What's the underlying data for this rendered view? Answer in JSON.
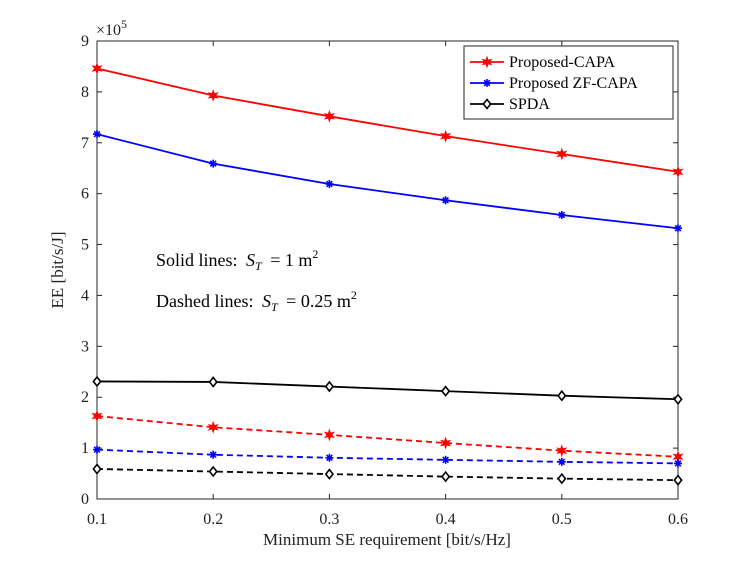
{
  "chart_data": {
    "type": "line",
    "title": "",
    "xlabel": "Minimum SE requirement [bit/s/Hz]",
    "ylabel": "EE [bit/s/J]",
    "x": [
      0.1,
      0.2,
      0.3,
      0.4,
      0.5,
      0.6
    ],
    "xlim": [
      0.1,
      0.6
    ],
    "ylim": [
      0,
      9
    ],
    "y_scale_exponent": "×10",
    "y_scale_power": "5",
    "x_ticks": [
      "0.1",
      "0.2",
      "0.3",
      "0.4",
      "0.5",
      "0.6"
    ],
    "y_ticks": [
      "0",
      "1",
      "2",
      "3",
      "4",
      "5",
      "6",
      "7",
      "8",
      "9"
    ],
    "grid": false,
    "legend_position": "top-right",
    "series": [
      {
        "name": "Proposed-CAPA",
        "color": "#ff0000",
        "style": "solid",
        "marker": "star",
        "show_in_legend": true,
        "values": [
          8.46,
          7.93,
          7.52,
          7.13,
          6.78,
          6.43
        ]
      },
      {
        "name": "Proposed ZF-CAPA",
        "color": "#0000ff",
        "style": "solid",
        "marker": "asterisk",
        "show_in_legend": true,
        "values": [
          7.17,
          6.59,
          6.19,
          5.87,
          5.58,
          5.32
        ]
      },
      {
        "name": "SPDA",
        "color": "#000000",
        "style": "solid",
        "marker": "diamond",
        "show_in_legend": true,
        "values": [
          2.31,
          2.3,
          2.21,
          2.12,
          2.03,
          1.96
        ]
      },
      {
        "name": "Proposed-CAPA (S_T = 0.25 m^2)",
        "color": "#ff0000",
        "style": "dashed",
        "marker": "star",
        "show_in_legend": false,
        "values": [
          1.63,
          1.41,
          1.26,
          1.1,
          0.95,
          0.83
        ]
      },
      {
        "name": "Proposed ZF-CAPA (S_T = 0.25 m^2)",
        "color": "#0000ff",
        "style": "dashed",
        "marker": "asterisk",
        "show_in_legend": false,
        "values": [
          0.97,
          0.87,
          0.81,
          0.77,
          0.73,
          0.7
        ]
      },
      {
        "name": "SPDA (S_T = 0.25 m^2)",
        "color": "#000000",
        "style": "dashed",
        "marker": "diamond",
        "show_in_legend": false,
        "values": [
          0.59,
          0.54,
          0.49,
          0.44,
          0.4,
          0.37
        ]
      }
    ],
    "annotations": [
      {
        "prefix": "Solid lines:",
        "var": "S",
        "sub": "T",
        "rest": "= 1 m",
        "sup": "2"
      },
      {
        "prefix": "Dashed lines:",
        "var": "S",
        "sub": "T",
        "rest": "= 0.25 m",
        "sup": "2"
      }
    ]
  }
}
